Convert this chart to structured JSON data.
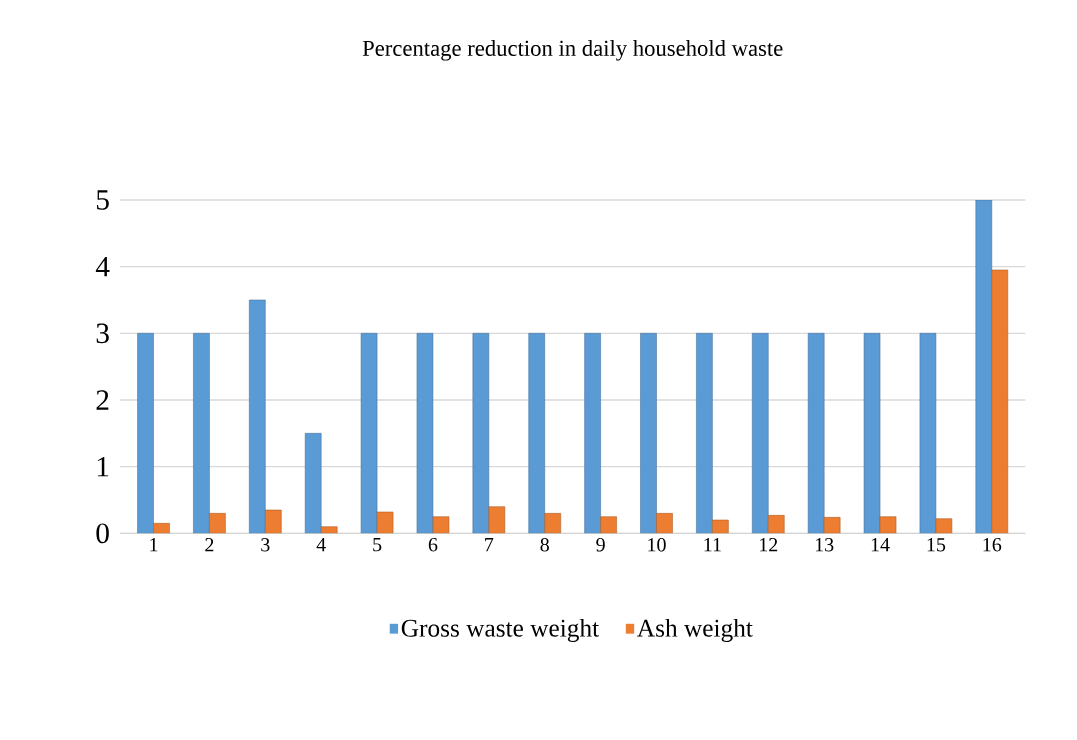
{
  "chart_data": {
    "type": "bar",
    "title": "Percentage reduction in daily household waste",
    "categories": [
      "1",
      "2",
      "3",
      "4",
      "5",
      "6",
      "7",
      "8",
      "9",
      "10",
      "11",
      "12",
      "13",
      "14",
      "15",
      "16"
    ],
    "series": [
      {
        "name": "Gross waste weight",
        "color": "#5b9bd5",
        "values": [
          3,
          3,
          3.5,
          1.5,
          3,
          3,
          3,
          3,
          3,
          3,
          3,
          3,
          3,
          3,
          3,
          5
        ]
      },
      {
        "name": "Ash weight",
        "color": "#ed7d31",
        "values": [
          0.15,
          0.3,
          0.35,
          0.1,
          0.32,
          0.25,
          0.4,
          0.3,
          0.25,
          0.3,
          0.2,
          0.27,
          0.24,
          0.25,
          0.22,
          3.95
        ]
      }
    ],
    "ylim": [
      0,
      5
    ],
    "yticks": [
      0,
      1,
      2,
      3,
      4,
      5
    ],
    "grid": "y",
    "legend": "bottom"
  }
}
